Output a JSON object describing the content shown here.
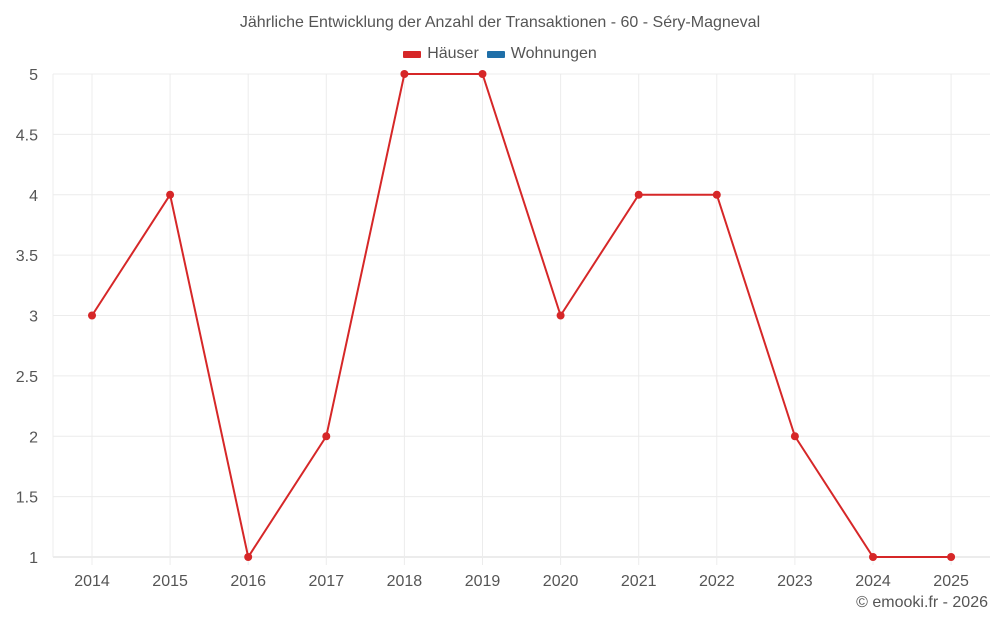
{
  "chart": {
    "title": "Jährliche Entwicklung der Anzahl der Transaktionen - 60 - Séry-Magneval",
    "credit": "© emooki.fr - 2026",
    "legend": [
      {
        "label": "Häuser",
        "color": "#d62728"
      },
      {
        "label": "Wohnungen",
        "color": "#1f6fa8"
      }
    ]
  },
  "chart_data": {
    "type": "line",
    "title": "Jährliche Entwicklung der Anzahl der Transaktionen - 60 - Séry-Magneval",
    "xlabel": "",
    "ylabel": "",
    "categories": [
      "2014",
      "2015",
      "2016",
      "2017",
      "2018",
      "2019",
      "2020",
      "2021",
      "2022",
      "2023",
      "2024",
      "2025"
    ],
    "series": [
      {
        "name": "Häuser",
        "color": "#d62728",
        "values": [
          3,
          4,
          1,
          2,
          5,
          5,
          3,
          4,
          4,
          2,
          1,
          1
        ]
      },
      {
        "name": "Wohnungen",
        "color": "#1f6fa8",
        "values": []
      }
    ],
    "ylim": [
      1,
      5
    ],
    "yticks": [
      "1",
      "1.5",
      "2",
      "2.5",
      "3",
      "3.5",
      "4",
      "4.5",
      "5"
    ],
    "grid": true,
    "legend_position": "top"
  }
}
